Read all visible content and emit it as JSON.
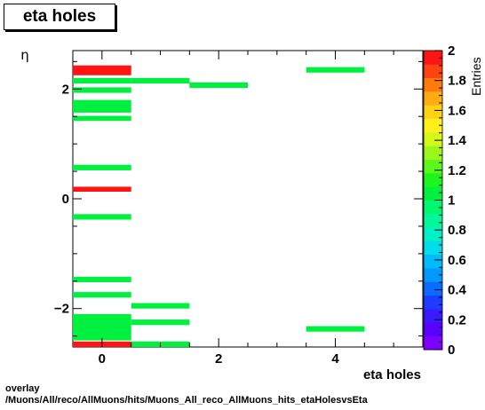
{
  "title": "eta holes",
  "footer": {
    "line1": "overlay",
    "line2": "/Muons/All/reco/AllMuons/hits/Muons_All_reco_AllMuons_hits_etaHolesvsEta"
  },
  "chart_data": {
    "type": "heatmap",
    "title": "eta holes",
    "xlabel": "eta holes",
    "ylabel": "η",
    "zlabel": "Entries",
    "xlim": [
      -0.5,
      5.5
    ],
    "ylim": [
      -2.7,
      2.7
    ],
    "zlim": [
      0,
      2
    ],
    "x_ticks": [
      0,
      2,
      4
    ],
    "y_ticks": [
      -2,
      0,
      2
    ],
    "z_ticks": [
      0,
      0.2,
      0.4,
      0.6,
      0.8,
      1,
      1.2,
      1.4,
      1.6,
      1.8,
      2
    ],
    "x_tick_labels": [
      "0",
      "2",
      "4"
    ],
    "y_tick_labels": [
      "−2",
      "0",
      "2"
    ],
    "z_tick_labels": [
      "0",
      "0.2",
      "0.4",
      "0.6",
      "0.8",
      "1",
      "1.2",
      "1.4",
      "1.6",
      "1.8",
      "2"
    ],
    "bin_width_x": 1,
    "cells": [
      {
        "x": 0,
        "y0": 2.25,
        "y1": 2.43,
        "z": 2
      },
      {
        "x": 0,
        "y0": 2.1,
        "y1": 2.2,
        "z": 1
      },
      {
        "x": 0,
        "y0": 1.93,
        "y1": 2.03,
        "z": 1
      },
      {
        "x": 0,
        "y0": 1.57,
        "y1": 1.8,
        "z": 1
      },
      {
        "x": 0,
        "y0": 1.42,
        "y1": 1.51,
        "z": 1
      },
      {
        "x": 0,
        "y0": 0.52,
        "y1": 0.62,
        "z": 1
      },
      {
        "x": 0,
        "y0": 0.13,
        "y1": 0.22,
        "z": 2
      },
      {
        "x": 0,
        "y0": -0.38,
        "y1": -0.28,
        "z": 1
      },
      {
        "x": 0,
        "y0": -1.52,
        "y1": -1.42,
        "z": 1
      },
      {
        "x": 0,
        "y0": -1.8,
        "y1": -1.7,
        "z": 1
      },
      {
        "x": 0,
        "y0": -2.58,
        "y1": -2.1,
        "z": 1
      },
      {
        "x": 0,
        "y0": -2.7,
        "y1": -2.6,
        "z": 2
      },
      {
        "x": 1,
        "y0": 2.1,
        "y1": 2.2,
        "z": 1
      },
      {
        "x": 1,
        "y0": -2.0,
        "y1": -1.9,
        "z": 1
      },
      {
        "x": 1,
        "y0": -2.3,
        "y1": -2.2,
        "z": 1
      },
      {
        "x": 1,
        "y0": -2.7,
        "y1": -2.6,
        "z": 1
      },
      {
        "x": 2,
        "y0": 2.02,
        "y1": 2.12,
        "z": 1
      },
      {
        "x": 4,
        "y0": 2.3,
        "y1": 2.4,
        "z": 1
      },
      {
        "x": 4,
        "y0": -2.42,
        "y1": -2.32,
        "z": 1
      }
    ],
    "palette": [
      "#7f00ff",
      "#5a00ff",
      "#3a1aff",
      "#1e3cff",
      "#0a6cff",
      "#0099ff",
      "#00bbff",
      "#00dcea",
      "#00f0c8",
      "#00f89a",
      "#00f870",
      "#00f040",
      "#1cf61c",
      "#5cf81c",
      "#9cf81c",
      "#d6f818",
      "#fff01a",
      "#ffd214",
      "#ffac10",
      "#ff7c0c",
      "#ff4410",
      "#ff1414"
    ],
    "grid": false
  }
}
